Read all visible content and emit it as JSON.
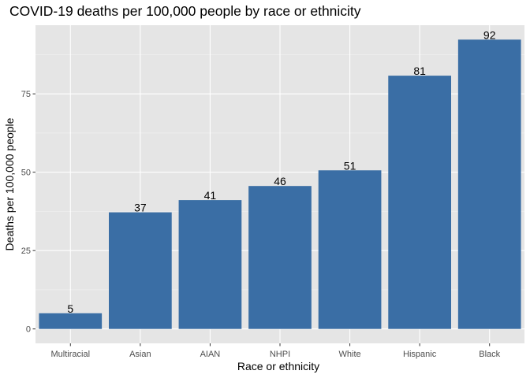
{
  "chart_data": {
    "type": "bar",
    "title": "COVID-19 deaths per 100,000 people by race or ethnicity",
    "xlabel": "Race or ethnicity",
    "ylabel": "Deaths per 100,000 people",
    "categories": [
      "Multiracial",
      "Asian",
      "AIAN",
      "NHPI",
      "White",
      "Hispanic",
      "Black"
    ],
    "values": [
      5,
      37.2,
      41.1,
      45.6,
      50.6,
      80.8,
      92.3
    ],
    "data_labels": [
      "5",
      "37",
      "41",
      "46",
      "51",
      "81",
      "92"
    ],
    "yticks": [
      0,
      25,
      50,
      75
    ],
    "ylim": [
      -4.6,
      96.9
    ],
    "grid": true,
    "legend": "none",
    "colors": {
      "bar": "#3A6EA5",
      "panel": "#E5E5E5",
      "grid_major": "#FFFFFF",
      "grid_minor": "#F2F2F2",
      "tick": "#333333"
    }
  }
}
